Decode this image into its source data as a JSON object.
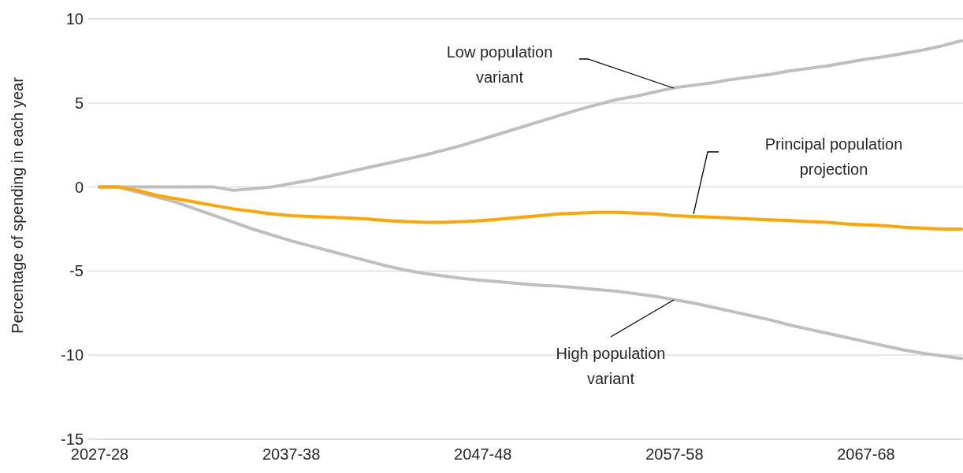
{
  "chart_data": {
    "type": "line",
    "ylabel": "Percentage of spending in each year",
    "categories": [
      "2027-28",
      null,
      null,
      null,
      null,
      null,
      null,
      null,
      null,
      null,
      "2037-38",
      null,
      null,
      null,
      null,
      null,
      null,
      null,
      null,
      null,
      "2047-48",
      null,
      null,
      null,
      null,
      null,
      null,
      null,
      null,
      null,
      "2057-58",
      null,
      null,
      null,
      null,
      null,
      null,
      null,
      null,
      null,
      "2067-68",
      null,
      null,
      null,
      null,
      null
    ],
    "series": [
      {
        "name": "Low population variant",
        "color": "#bfbfbf",
        "values": [
          0,
          0,
          0,
          0,
          0,
          0,
          0,
          -0.2,
          -0.1,
          0,
          0.2,
          0.4,
          0.65,
          0.9,
          1.15,
          1.4,
          1.65,
          1.9,
          2.2,
          2.5,
          2.85,
          3.2,
          3.55,
          3.9,
          4.25,
          4.6,
          4.9,
          5.2,
          5.4,
          5.65,
          5.9,
          6.05,
          6.2,
          6.4,
          6.55,
          6.7,
          6.9,
          7.05,
          7.2,
          7.4,
          7.6,
          7.75,
          7.95,
          8.15,
          8.4,
          8.7
        ]
      },
      {
        "name": "High population variant",
        "color": "#bfbfbf",
        "values": [
          0,
          0,
          -0.3,
          -0.6,
          -0.9,
          -1.3,
          -1.7,
          -2.1,
          -2.5,
          -2.85,
          -3.2,
          -3.5,
          -3.8,
          -4.1,
          -4.4,
          -4.7,
          -4.95,
          -5.15,
          -5.3,
          -5.45,
          -5.55,
          -5.65,
          -5.75,
          -5.85,
          -5.9,
          -6.0,
          -6.1,
          -6.2,
          -6.35,
          -6.5,
          -6.7,
          -6.9,
          -7.15,
          -7.4,
          -7.65,
          -7.9,
          -8.2,
          -8.45,
          -8.7,
          -8.95,
          -9.2,
          -9.45,
          -9.7,
          -9.9,
          -10.05,
          -10.2
        ]
      },
      {
        "name": "Principal population projection",
        "color": "#ffa500",
        "values": [
          0,
          0,
          -0.2,
          -0.5,
          -0.7,
          -0.9,
          -1.1,
          -1.3,
          -1.45,
          -1.6,
          -1.7,
          -1.75,
          -1.8,
          -1.85,
          -1.9,
          -2.0,
          -2.05,
          -2.1,
          -2.1,
          -2.05,
          -2.0,
          -1.9,
          -1.8,
          -1.7,
          -1.6,
          -1.55,
          -1.5,
          -1.5,
          -1.55,
          -1.6,
          -1.7,
          -1.75,
          -1.8,
          -1.85,
          -1.9,
          -1.95,
          -2.0,
          -2.05,
          -2.1,
          -2.2,
          -2.25,
          -2.3,
          -2.4,
          -2.45,
          -2.5,
          -2.5
        ]
      }
    ],
    "ylim": [
      -15,
      10
    ],
    "yticks": [
      -15,
      -10,
      -5,
      0,
      5,
      10
    ],
    "grid": "y"
  }
}
